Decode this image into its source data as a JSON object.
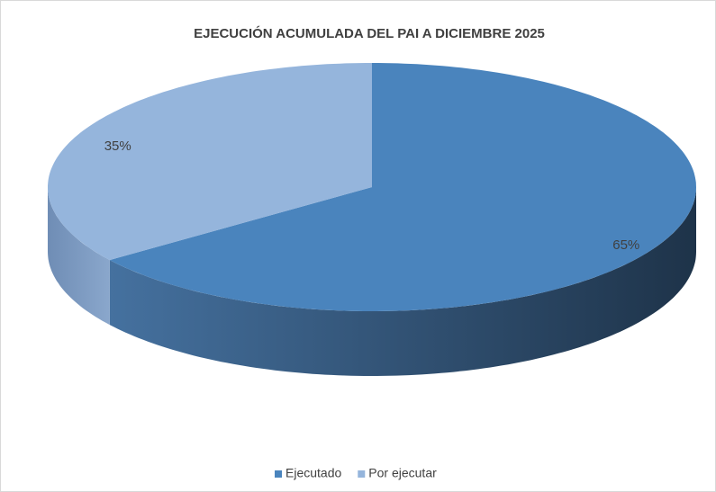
{
  "chart_data": {
    "type": "pie3d",
    "title": "EJECUCIÓN ACUMULADA DEL PAI A DICIEMBRE 2025",
    "categories": [
      "Ejecutado",
      "Por ejecutar"
    ],
    "values": [
      65,
      35
    ],
    "value_labels": [
      "65%",
      "35%"
    ],
    "colors": [
      "#4a84bd",
      "#95b5dc"
    ],
    "legend": "bottom"
  }
}
